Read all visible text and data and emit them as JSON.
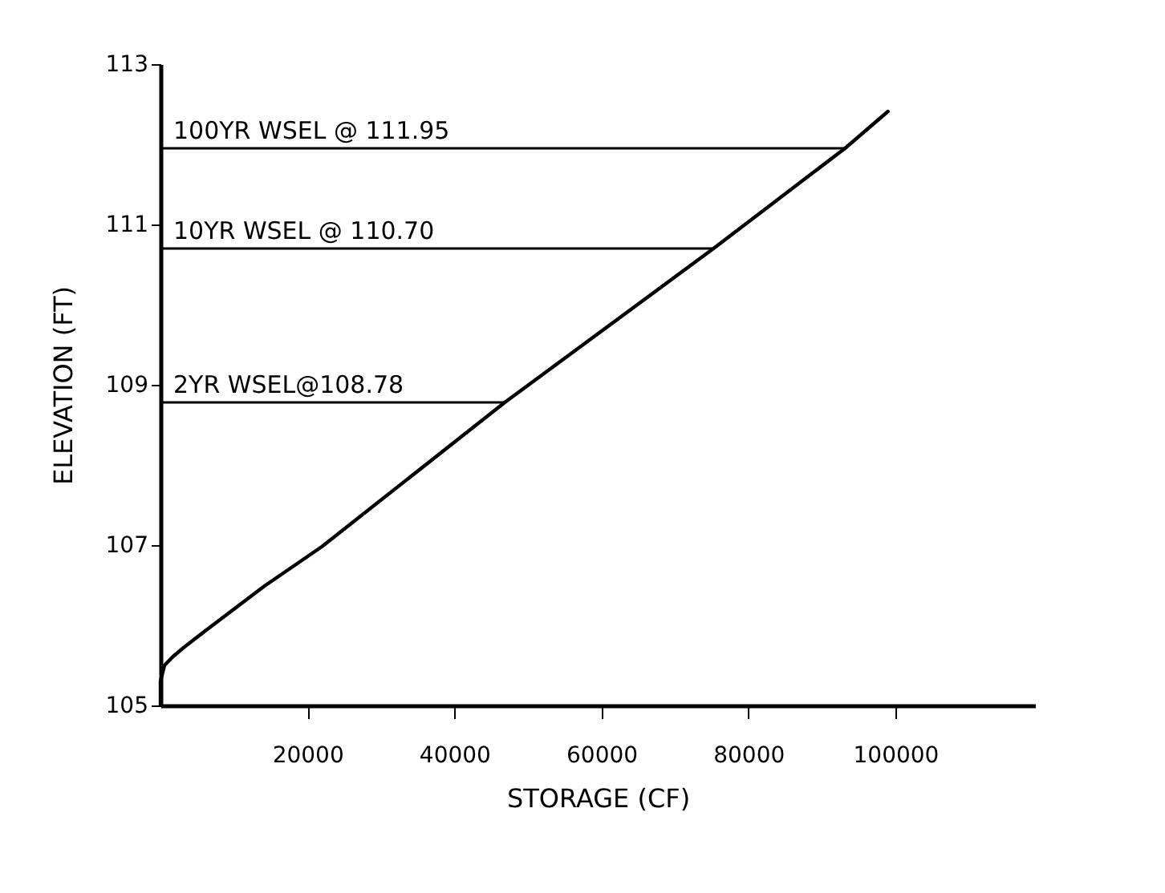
{
  "chart_data": {
    "type": "line",
    "xlabel": "STORAGE (CF)",
    "ylabel": "ELEVATION (FT)",
    "x": [
      0,
      0,
      550,
      1710,
      3270,
      6380,
      14160,
      21950,
      46850,
      75250,
      93150,
      98990
    ],
    "series": [
      {
        "color": "#000000",
        "values": [
          105,
          105.3,
          105.5,
          105.61,
          105.73,
          105.95,
          106.49,
          106.98,
          108.78,
          110.7,
          111.95,
          112.41
        ]
      }
    ],
    "xlim": [
      0,
      119000
    ],
    "xticks": [
      20000,
      40000,
      60000,
      80000,
      100000
    ],
    "ylim": [
      105,
      113
    ],
    "yticks": [
      105,
      107,
      109,
      111,
      113
    ],
    "ref_lines": [
      {
        "axis": "y",
        "value": 111.95,
        "label": "100YR WSEL @ 111.95",
        "color": "#000000"
      },
      {
        "axis": "y",
        "value": 110.7,
        "label": "10YR WSEL @ 110.70",
        "color": "#000000"
      },
      {
        "axis": "y",
        "value": 108.78,
        "label": "2YR WSEL@108.78",
        "color": "#000000"
      }
    ],
    "grid": false,
    "marker": "none",
    "line_style": "solid"
  }
}
